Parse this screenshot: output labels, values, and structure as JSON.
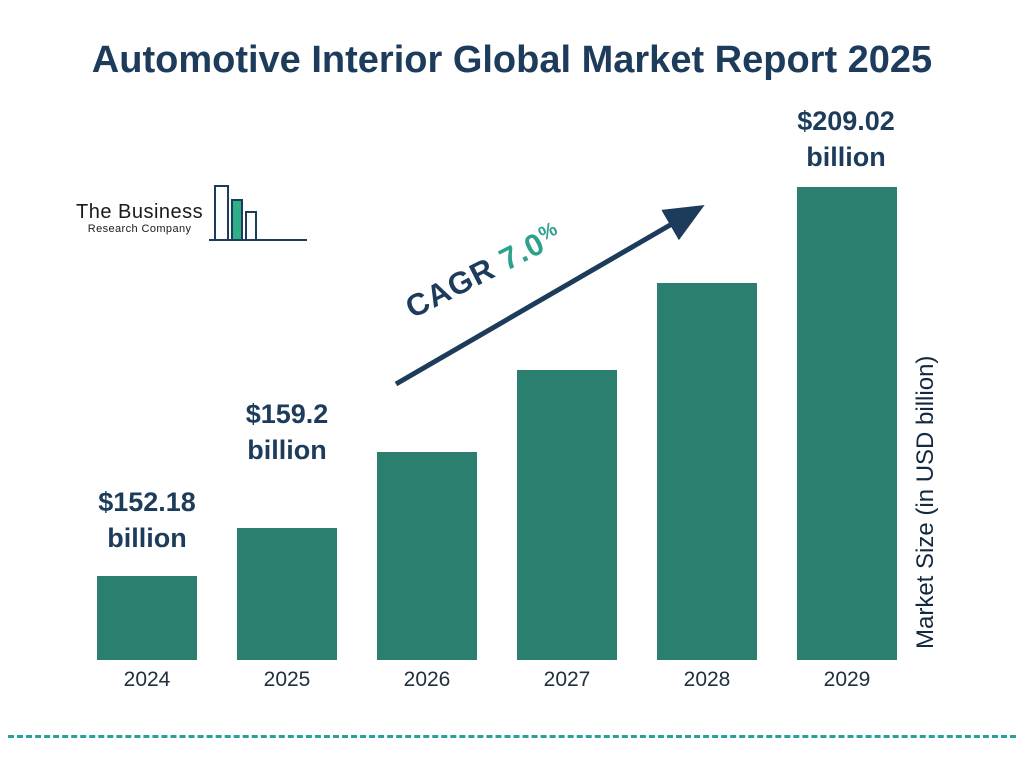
{
  "title": "Automotive Interior Global Market Report 2025",
  "logo": {
    "line1": "The Business",
    "line2": "Research Company"
  },
  "cagr": {
    "prefix": "CAGR",
    "value": "7.0",
    "percent": "%"
  },
  "y_axis_label": "Market Size (in USD billion)",
  "colors": {
    "bar": "#2a7f6f",
    "title_navy": "#1d3c5c",
    "accent_teal": "#2fa08e",
    "divider_teal": "#2aa198"
  },
  "chart_data": {
    "type": "bar",
    "title": "Automotive Interior Global Market Report 2025",
    "categories": [
      "2024",
      "2025",
      "2026",
      "2027",
      "2028",
      "2029"
    ],
    "values": [
      152.18,
      159.2,
      170.3,
      182.3,
      195.0,
      209.02
    ],
    "labeled_values": [
      "$152.18 billion",
      "$159.2 billion",
      "$209.02 billion"
    ],
    "cagr": "7.0%",
    "xlabel": "",
    "ylabel": "Market Size (in USD billion)",
    "ylim": [
      140,
      210
    ],
    "grid": false,
    "legend": "none",
    "annotations": [
      {
        "bar_index": 0,
        "line1": "$152.18",
        "line2": "billion"
      },
      {
        "bar_index": 1,
        "line1": "$159.2",
        "line2": "billion"
      },
      {
        "bar_index": 5,
        "line1": "$209.02",
        "line2": "billion"
      }
    ]
  }
}
